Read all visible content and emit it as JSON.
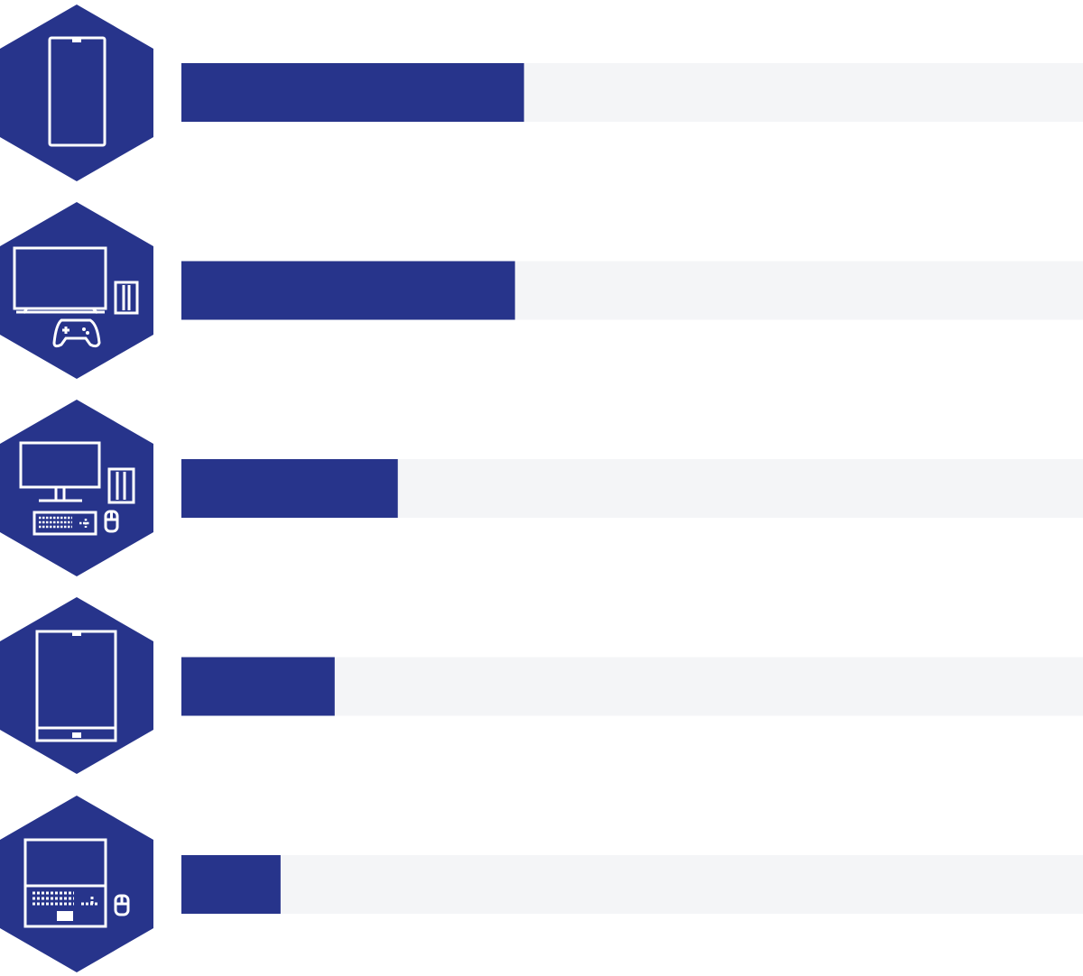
{
  "chart_data": {
    "type": "bar",
    "orientation": "horizontal",
    "categories": [
      null,
      null,
      null,
      null,
      null
    ],
    "values": [
      38,
      37,
      24,
      17,
      11
    ],
    "color": "#27348b",
    "track_color": "#f4f5f7",
    "xlim": [
      0,
      100
    ]
  }
}
